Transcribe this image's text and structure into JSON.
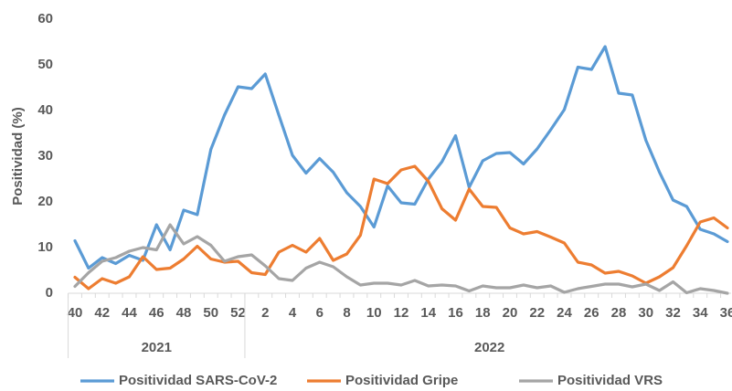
{
  "chart_data": {
    "type": "line",
    "y_label": "Positividad (%)",
    "categories": [
      "40",
      null,
      "42",
      null,
      "44",
      null,
      "46",
      null,
      "48",
      null,
      "50",
      null,
      "52",
      null,
      "2",
      null,
      "4",
      null,
      "6",
      null,
      "8",
      null,
      "10",
      null,
      "12",
      null,
      "14",
      null,
      "16",
      null,
      "18",
      null,
      "20",
      null,
      "22",
      null,
      "24",
      null,
      "26",
      null,
      "28",
      null,
      "30",
      null,
      "32",
      null,
      "34",
      null,
      "36"
    ],
    "groups": [
      {
        "label": "2021",
        "span": 13
      },
      {
        "label": "2022",
        "span": 36
      }
    ],
    "series": [
      {
        "name": "Positividad SARS-CoV-2",
        "color": "#5b9bd5",
        "values": [
          11.5,
          5.5,
          7.8,
          6.5,
          8.3,
          7.2,
          15,
          9.5,
          18.2,
          17.2,
          31.5,
          39,
          45.2,
          44.8,
          48,
          39,
          30.2,
          26.3,
          29.5,
          26.5,
          22,
          19,
          14.5,
          23.5,
          19.8,
          19.5,
          25,
          28.8,
          34.5,
          23.2,
          29,
          30.6,
          30.8,
          28.3,
          31.6,
          35.8,
          40.2,
          49.5,
          49,
          54,
          43.8,
          43.4,
          33.5,
          26.5,
          20.4,
          19,
          14,
          13,
          11.3
        ]
      },
      {
        "name": "Positividad Gripe",
        "color": "#ed7d31",
        "values": [
          3.5,
          1,
          3.2,
          2.2,
          3.6,
          8,
          5.2,
          5.5,
          7.5,
          10.3,
          7.5,
          6.8,
          7,
          4.5,
          4.1,
          9,
          10.5,
          9,
          12,
          7.2,
          8.6,
          12.7,
          25,
          24,
          27,
          27.8,
          24.5,
          18.5,
          16,
          22.8,
          19,
          18.8,
          14.3,
          13,
          13.5,
          12.3,
          11,
          6.8,
          6.2,
          4.4,
          4.8,
          3.8,
          2.2,
          3.6,
          5.6,
          10.4,
          15.6,
          16.5,
          14.3
        ]
      },
      {
        "name": "Positividad VRS",
        "color": "#a5a5a5",
        "values": [
          1.5,
          4.5,
          7,
          7.8,
          9.2,
          10,
          9.5,
          15,
          10.8,
          12.4,
          10.5,
          7,
          8,
          8.4,
          6,
          3.2,
          2.8,
          5.5,
          6.8,
          5.8,
          3.6,
          1.8,
          2.2,
          2.2,
          1.8,
          2.8,
          1.6,
          1.8,
          1.6,
          0.5,
          1.6,
          1.2,
          1.2,
          1.8,
          1.2,
          1.6,
          0.2,
          1,
          1.5,
          2,
          2,
          1.4,
          2,
          0.6,
          2.5,
          0.1,
          1,
          0.6,
          0
        ]
      }
    ],
    "ylim": [
      0,
      60
    ],
    "yticks": [
      0,
      10,
      20,
      30,
      40,
      50,
      60
    ],
    "grid": false
  }
}
